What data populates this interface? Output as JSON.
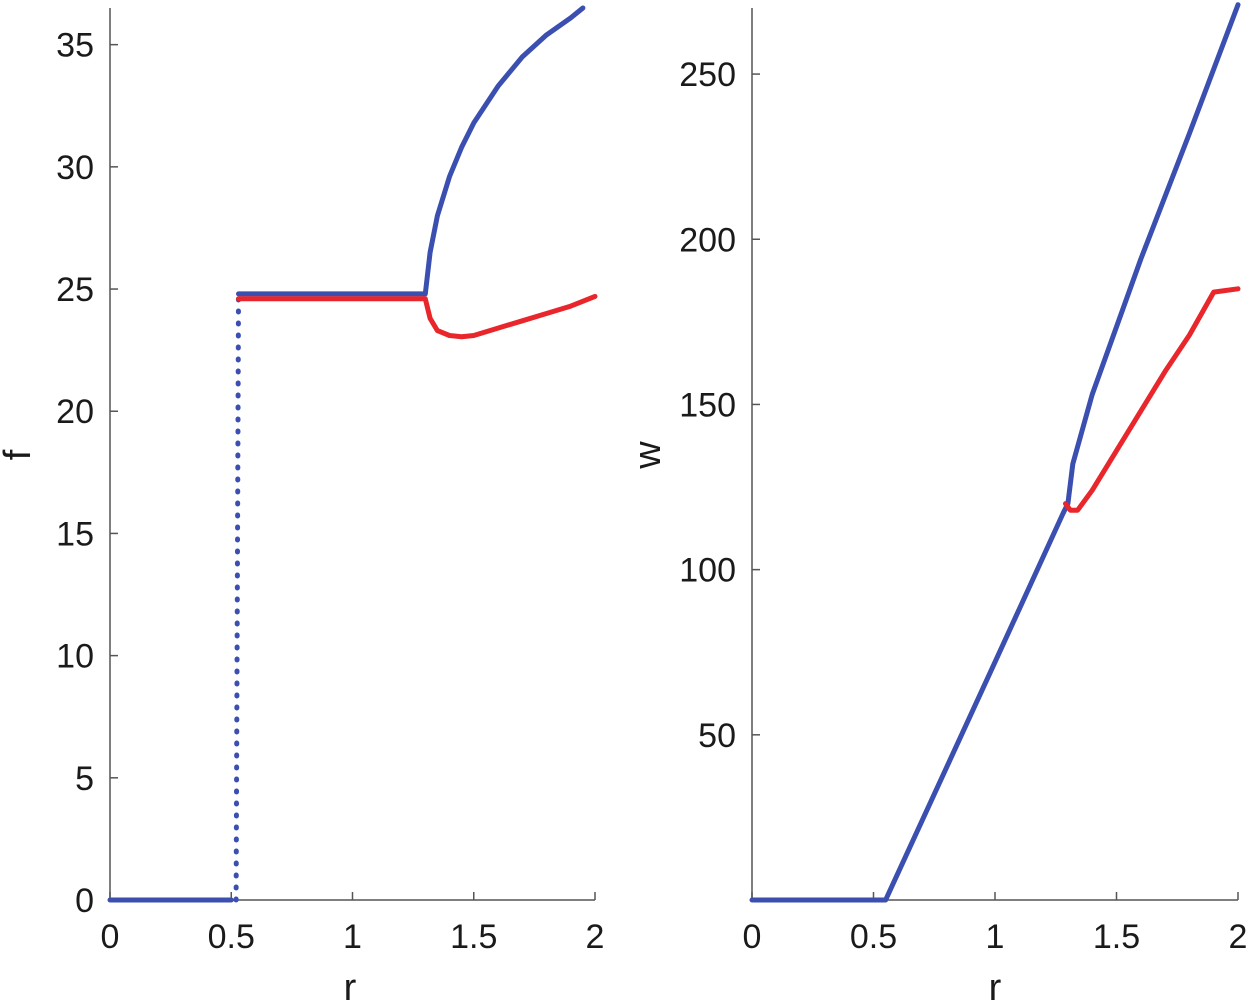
{
  "chart_data": [
    {
      "type": "line",
      "xlabel": "r",
      "ylabel": "f",
      "xlim": [
        0,
        2
      ],
      "ylim": [
        0,
        36.5
      ],
      "xticks": [
        "0",
        "0.5",
        "1",
        "1.5",
        "2"
      ],
      "yticks": [
        "0",
        "5",
        "10",
        "15",
        "20",
        "25",
        "30",
        "35"
      ],
      "grid": false,
      "series": [
        {
          "color": "#3a4fb0",
          "style": "solid",
          "points": [
            [
              0,
              0
            ],
            [
              0.5,
              0
            ]
          ]
        },
        {
          "color": "#3a4fb0",
          "style": "dotted",
          "points": [
            [
              0.52,
              0
            ],
            [
              0.53,
              24.8
            ]
          ]
        },
        {
          "color": "#3a4fb0",
          "style": "solid",
          "points": [
            [
              0.53,
              24.8
            ],
            [
              1.3,
              24.8
            ],
            [
              1.32,
              26.5
            ],
            [
              1.35,
              28.0
            ],
            [
              1.4,
              29.6
            ],
            [
              1.45,
              30.8
            ],
            [
              1.5,
              31.8
            ],
            [
              1.6,
              33.3
            ],
            [
              1.7,
              34.5
            ],
            [
              1.8,
              35.4
            ],
            [
              1.9,
              36.1
            ],
            [
              1.95,
              36.5
            ]
          ]
        },
        {
          "color": "#e8262b",
          "style": "solid",
          "points": [
            [
              0.53,
              24.6
            ],
            [
              1.3,
              24.6
            ],
            [
              1.32,
              23.8
            ],
            [
              1.35,
              23.3
            ],
            [
              1.4,
              23.1
            ],
            [
              1.45,
              23.05
            ],
            [
              1.5,
              23.1
            ],
            [
              1.6,
              23.4
            ],
            [
              1.7,
              23.7
            ],
            [
              1.8,
              24.0
            ],
            [
              1.9,
              24.3
            ],
            [
              2.0,
              24.7
            ]
          ]
        }
      ]
    },
    {
      "type": "line",
      "xlabel": "r",
      "ylabel": "w",
      "xlim": [
        0,
        2
      ],
      "ylim": [
        0,
        270
      ],
      "xticks": [
        "0",
        "0.5",
        "1",
        "1.5",
        "2"
      ],
      "yticks": [
        "50",
        "100",
        "150",
        "200",
        "250"
      ],
      "grid": false,
      "series": [
        {
          "color": "#3a4fb0",
          "style": "solid",
          "points": [
            [
              0,
              0
            ],
            [
              0.55,
              0
            ],
            [
              1.0,
              72
            ],
            [
              1.28,
              117
            ],
            [
              1.3,
              120
            ],
            [
              1.32,
              132
            ],
            [
              1.4,
              153
            ],
            [
              1.6,
              194
            ],
            [
              1.8,
              232
            ],
            [
              2.0,
              271
            ]
          ]
        },
        {
          "color": "#e8262b",
          "style": "solid",
          "points": [
            [
              1.29,
              120
            ],
            [
              1.31,
              118
            ],
            [
              1.34,
              118
            ],
            [
              1.4,
              124
            ],
            [
              1.5,
              136
            ],
            [
              1.6,
              148
            ],
            [
              1.7,
              160
            ],
            [
              1.8,
              171
            ],
            [
              1.9,
              184
            ],
            [
              2.0,
              185
            ]
          ]
        }
      ]
    }
  ]
}
